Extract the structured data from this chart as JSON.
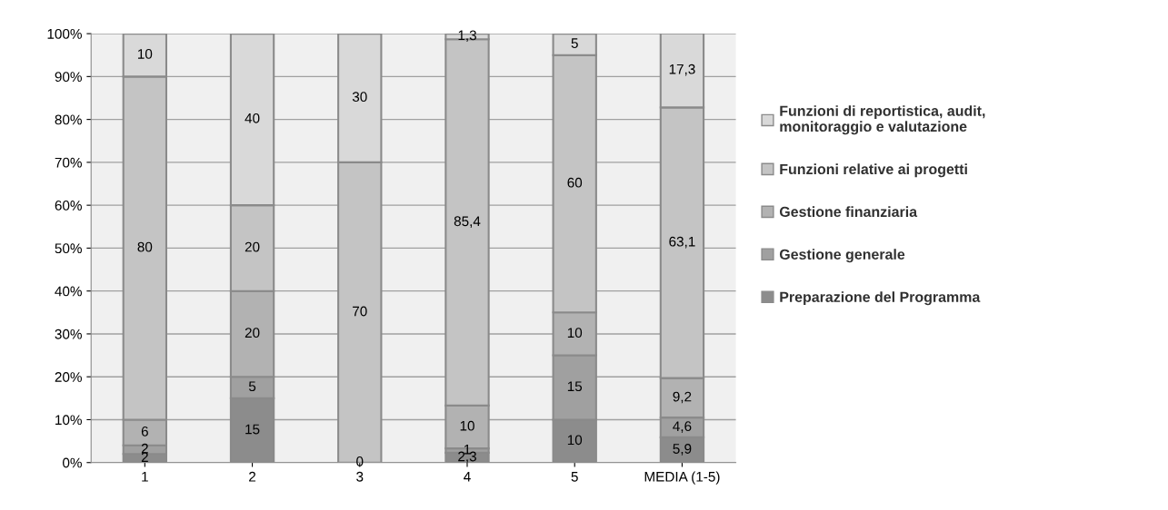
{
  "chart_data": {
    "type": "bar",
    "stacked": true,
    "categories": [
      "1",
      "2",
      "3",
      "4",
      "5",
      "MEDIA (1-5)"
    ],
    "series": [
      {
        "name": "Preparazione del Programma",
        "color": "#8c8c8c",
        "values": [
          2,
          15,
          0,
          2.3,
          10,
          5.9
        ],
        "value_labels": [
          "2",
          "15",
          "0",
          "2,3",
          "10",
          "5,9"
        ]
      },
      {
        "name": "Gestione generale",
        "color": "#a0a0a0",
        "values": [
          2,
          5,
          null,
          1,
          15,
          4.6
        ],
        "value_labels": [
          "2",
          "5",
          null,
          "1",
          "15",
          "4,6"
        ]
      },
      {
        "name": "Gestione finanziaria",
        "color": "#b2b2b2",
        "values": [
          6,
          20,
          null,
          10,
          10,
          9.2
        ],
        "value_labels": [
          "6",
          "20",
          null,
          "10",
          "10",
          "9,2"
        ]
      },
      {
        "name": "Funzioni relative ai progetti",
        "color": "#c4c4c4",
        "values": [
          80,
          20,
          70,
          85.4,
          60,
          63.1
        ],
        "value_labels": [
          "80",
          "20",
          "70",
          "85,4",
          "60",
          "63,1"
        ]
      },
      {
        "name": "Funzioni di reportistica, audit, monitoraggio e valutazione",
        "color": "#d9d9d9",
        "values": [
          10,
          40,
          30,
          1.3,
          5,
          17.3
        ],
        "value_labels": [
          "10",
          "40",
          "30",
          "1,3",
          "5",
          "17,3"
        ]
      }
    ],
    "ylim": [
      0,
      100
    ],
    "yticks": [
      {
        "value": 0,
        "label": "0%"
      },
      {
        "value": 10,
        "label": "10%"
      },
      {
        "value": 20,
        "label": "20%"
      },
      {
        "value": 30,
        "label": "30%"
      },
      {
        "value": 40,
        "label": "40%"
      },
      {
        "value": 50,
        "label": "50%"
      },
      {
        "value": 60,
        "label": "60%"
      },
      {
        "value": 70,
        "label": "70%"
      },
      {
        "value": 80,
        "label": "80%"
      },
      {
        "value": 90,
        "label": "90%"
      },
      {
        "value": 100,
        "label": "100%"
      }
    ],
    "grid": "y",
    "legend": "right"
  }
}
